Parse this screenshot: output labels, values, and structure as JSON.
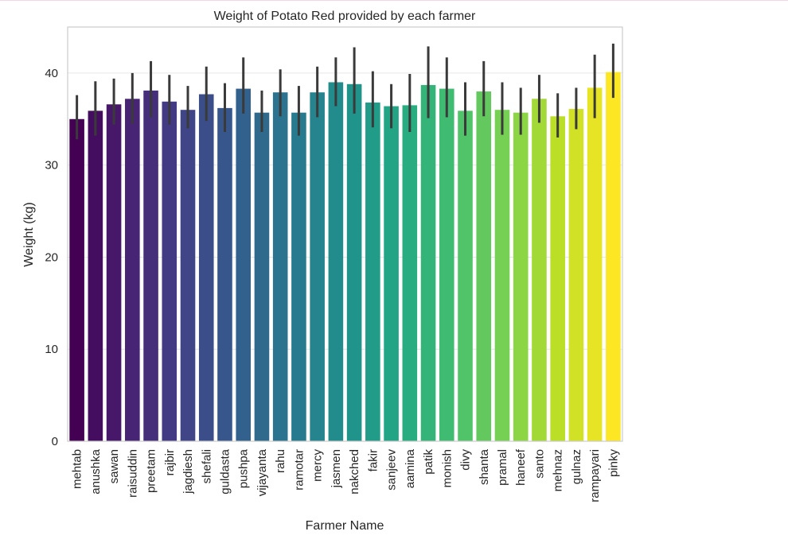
{
  "chart_data": {
    "type": "bar",
    "title": "Weight of Potato Red provided by each farmer",
    "xlabel": "Farmer Name",
    "ylabel": "Weight (kg)",
    "ylim": [
      0,
      45
    ],
    "yticks": [
      0,
      10,
      20,
      30,
      40
    ],
    "grid": "horizontal",
    "palette": "viridis",
    "categories": [
      "mehtab",
      "anushka",
      "sawan",
      "raisuddin",
      "preetam",
      "rajbir",
      "jagdiesh",
      "shefali",
      "guldasta",
      "pushpa",
      "vijayanta",
      "rahu",
      "ramotar",
      "mercy",
      "jasmen",
      "nakched",
      "fakir",
      "sanjeev",
      "aamina",
      "patik",
      "monish",
      "divy",
      "shanta",
      "pramal",
      "haneef",
      "santo",
      "mehnaz",
      "gulnaz",
      "rampayari",
      "pinky"
    ],
    "values": [
      35.0,
      35.9,
      36.6,
      37.2,
      38.1,
      36.9,
      36.0,
      37.7,
      36.2,
      38.3,
      35.7,
      37.9,
      35.7,
      37.9,
      39.0,
      38.8,
      36.8,
      36.4,
      36.5,
      38.7,
      38.3,
      35.9,
      38.0,
      36.0,
      35.7,
      37.2,
      35.3,
      36.1,
      38.4,
      40.1
    ],
    "ci_low": [
      32.8,
      33.2,
      34.4,
      34.5,
      35.2,
      34.4,
      34.0,
      34.8,
      33.6,
      35.6,
      33.6,
      35.3,
      33.2,
      35.2,
      36.4,
      35.6,
      34.1,
      34.0,
      33.6,
      35.1,
      35.2,
      33.2,
      35.3,
      33.3,
      33.3,
      34.6,
      33.0,
      33.9,
      35.1,
      37.3
    ],
    "ci_high": [
      37.6,
      39.1,
      39.4,
      40.0,
      41.3,
      39.8,
      38.6,
      40.7,
      38.9,
      41.7,
      38.1,
      40.4,
      38.6,
      40.7,
      41.7,
      42.8,
      40.2,
      38.8,
      39.9,
      42.9,
      41.7,
      39.0,
      41.3,
      39.0,
      38.4,
      39.8,
      37.8,
      38.4,
      42.0,
      43.2
    ]
  }
}
